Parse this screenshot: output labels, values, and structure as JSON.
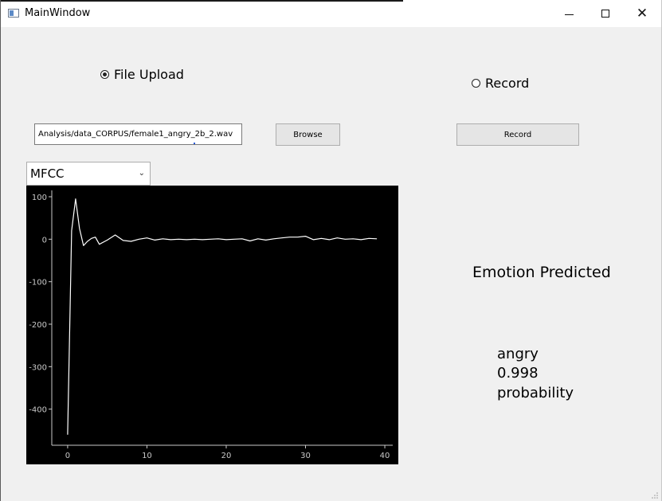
{
  "window": {
    "title": "MainWindow",
    "controls": {
      "minimize": "minimize-icon",
      "maximize": "maximize-icon",
      "close": "close-icon"
    }
  },
  "mode": {
    "file_upload_label": "File Upload",
    "record_label": "Record",
    "selected": "file_upload"
  },
  "file_input": {
    "value": "Analysis/data_CORPUS/female1_angry_2b_2.wav"
  },
  "buttons": {
    "browse_label": "Browse",
    "record_label": "Record"
  },
  "feature_select": {
    "selected": "MFCC"
  },
  "result": {
    "heading": "Emotion Predicted",
    "emotion": "angry",
    "probability": "0.998",
    "probability_label": "probability"
  },
  "chart_data": {
    "type": "line",
    "title": "",
    "xlabel": "",
    "ylabel": "",
    "xlim": [
      -2,
      41
    ],
    "ylim": [
      -485,
      115
    ],
    "x_ticks": [
      0,
      10,
      20,
      30,
      40
    ],
    "y_ticks": [
      100,
      0,
      -100,
      -200,
      -300,
      -400
    ],
    "background": "#000000",
    "line_color": "#ffffff",
    "axis_color": "#c8c8c8",
    "grid": false,
    "series": [
      {
        "x": [
          0,
          0.5,
          1,
          1.5,
          2,
          2.5,
          3,
          3.5,
          4,
          5,
          6,
          7,
          8,
          9,
          10,
          11,
          12,
          13,
          14,
          15,
          16,
          17,
          18,
          19,
          20,
          21,
          22,
          23,
          24,
          25,
          26,
          27,
          28,
          29,
          30,
          31,
          32,
          33,
          34,
          35,
          36,
          37,
          38,
          39
        ],
        "y": [
          -460,
          20,
          95,
          25,
          -15,
          -5,
          2,
          5,
          -12,
          -2,
          10,
          -3,
          -5,
          0,
          3,
          -2,
          1,
          -1,
          0,
          -1,
          0,
          -1,
          0,
          1,
          -1,
          0,
          1,
          -4,
          1,
          -2,
          1,
          3,
          5,
          5,
          7,
          -1,
          2,
          -1,
          3,
          0,
          1,
          -1,
          2,
          1
        ]
      }
    ]
  }
}
